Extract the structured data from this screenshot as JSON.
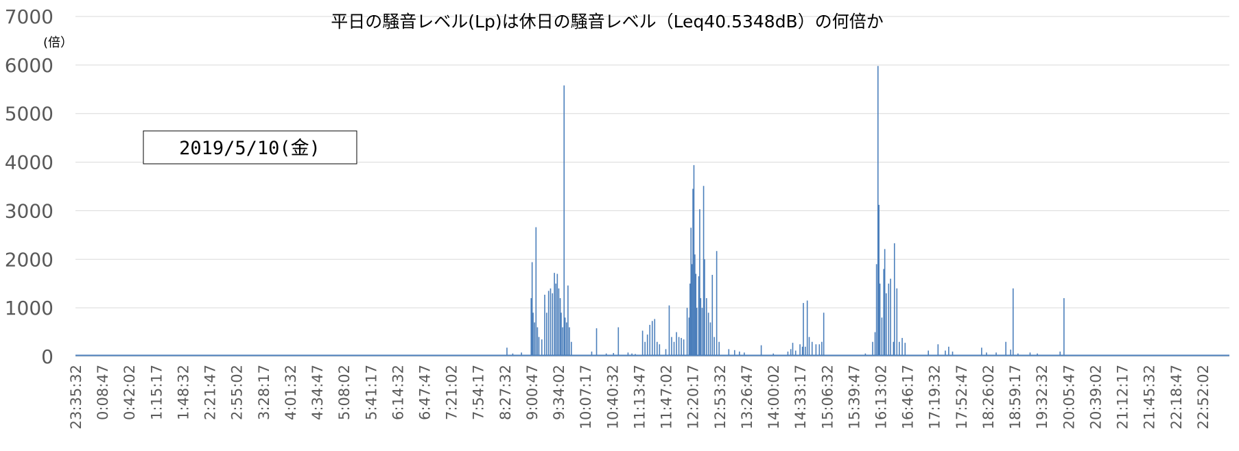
{
  "chart_data": {
    "type": "line",
    "title": "平日の騒音レベル(Lp)は休日の騒音レベル（Leq40.5348dB）の何倍か",
    "ylabel": "(倍）",
    "annotation": "2019/5/10(金)",
    "ylim": [
      0,
      7000
    ],
    "yticks": [
      0,
      1000,
      2000,
      3000,
      4000,
      5000,
      6000,
      7000
    ],
    "grid": true,
    "legend": "none",
    "series_color": "#4a7ebb",
    "xticks": [
      "23:35:32",
      "0:08:47",
      "0:42:02",
      "1:15:17",
      "1:48:32",
      "2:21:47",
      "2:55:02",
      "3:28:17",
      "4:01:32",
      "4:34:47",
      "5:08:02",
      "5:41:17",
      "6:14:32",
      "6:47:47",
      "7:21:02",
      "7:54:17",
      "8:27:32",
      "9:00:47",
      "9:34:02",
      "10:07:17",
      "10:40:32",
      "11:13:47",
      "11:47:02",
      "12:20:17",
      "12:53:32",
      "13:26:47",
      "14:00:02",
      "14:33:17",
      "15:06:32",
      "15:39:47",
      "16:13:02",
      "16:46:17",
      "17:19:32",
      "17:52:47",
      "18:26:02",
      "18:59:17",
      "19:32:32",
      "20:05:47",
      "20:39:02",
      "21:12:17",
      "21:45:32",
      "22:18:47",
      "22:52:02"
    ],
    "x_min_hours": -0.4078,
    "x_max_hours": 23.415,
    "peaks": [
      [
        8.5,
        180
      ],
      [
        8.62,
        60
      ],
      [
        8.8,
        80
      ],
      [
        9.0,
        1200
      ],
      [
        9.02,
        1940
      ],
      [
        9.04,
        900
      ],
      [
        9.07,
        700
      ],
      [
        9.1,
        2660
      ],
      [
        9.13,
        600
      ],
      [
        9.16,
        400
      ],
      [
        9.22,
        350
      ],
      [
        9.28,
        1270
      ],
      [
        9.32,
        900
      ],
      [
        9.36,
        1350
      ],
      [
        9.4,
        1400
      ],
      [
        9.44,
        1300
      ],
      [
        9.48,
        1720
      ],
      [
        9.51,
        1500
      ],
      [
        9.54,
        1700
      ],
      [
        9.57,
        1400
      ],
      [
        9.6,
        1200
      ],
      [
        9.62,
        900
      ],
      [
        9.65,
        600
      ],
      [
        9.68,
        5580
      ],
      [
        9.7,
        800
      ],
      [
        9.73,
        700
      ],
      [
        9.76,
        1460
      ],
      [
        9.79,
        600
      ],
      [
        9.83,
        300
      ],
      [
        10.25,
        100
      ],
      [
        10.35,
        580
      ],
      [
        10.55,
        60
      ],
      [
        10.7,
        70
      ],
      [
        10.8,
        600
      ],
      [
        11.0,
        80
      ],
      [
        11.08,
        60
      ],
      [
        11.15,
        50
      ],
      [
        11.3,
        530
      ],
      [
        11.35,
        300
      ],
      [
        11.4,
        450
      ],
      [
        11.45,
        650
      ],
      [
        11.5,
        730
      ],
      [
        11.55,
        770
      ],
      [
        11.6,
        300
      ],
      [
        11.65,
        250
      ],
      [
        11.78,
        150
      ],
      [
        11.85,
        1050
      ],
      [
        11.9,
        400
      ],
      [
        11.95,
        300
      ],
      [
        12.0,
        500
      ],
      [
        12.05,
        400
      ],
      [
        12.1,
        380
      ],
      [
        12.15,
        350
      ],
      [
        12.22,
        1000
      ],
      [
        12.26,
        800
      ],
      [
        12.28,
        1500
      ],
      [
        12.3,
        2650
      ],
      [
        12.32,
        1900
      ],
      [
        12.34,
        3450
      ],
      [
        12.36,
        3940
      ],
      [
        12.38,
        2100
      ],
      [
        12.4,
        1700
      ],
      [
        12.42,
        1000
      ],
      [
        12.46,
        1650
      ],
      [
        12.48,
        3030
      ],
      [
        12.5,
        1200
      ],
      [
        12.53,
        1000
      ],
      [
        12.56,
        3510
      ],
      [
        12.58,
        2000
      ],
      [
        12.62,
        1200
      ],
      [
        12.66,
        900
      ],
      [
        12.7,
        700
      ],
      [
        12.74,
        1680
      ],
      [
        12.78,
        400
      ],
      [
        12.83,
        2170
      ],
      [
        12.88,
        300
      ],
      [
        13.08,
        150
      ],
      [
        13.2,
        130
      ],
      [
        13.3,
        100
      ],
      [
        13.4,
        80
      ],
      [
        13.75,
        230
      ],
      [
        14.0,
        60
      ],
      [
        14.3,
        100
      ],
      [
        14.36,
        150
      ],
      [
        14.4,
        280
      ],
      [
        14.46,
        120
      ],
      [
        14.55,
        250
      ],
      [
        14.6,
        200
      ],
      [
        14.62,
        1100
      ],
      [
        14.66,
        200
      ],
      [
        14.7,
        1150
      ],
      [
        14.74,
        400
      ],
      [
        14.8,
        300
      ],
      [
        14.88,
        250
      ],
      [
        14.95,
        250
      ],
      [
        15.0,
        300
      ],
      [
        15.04,
        900
      ],
      [
        15.9,
        60
      ],
      [
        16.05,
        300
      ],
      [
        16.1,
        500
      ],
      [
        16.13,
        1900
      ],
      [
        16.16,
        5980
      ],
      [
        16.18,
        3120
      ],
      [
        16.2,
        1500
      ],
      [
        16.24,
        800
      ],
      [
        16.28,
        1800
      ],
      [
        16.3,
        2210
      ],
      [
        16.33,
        1300
      ],
      [
        16.38,
        1500
      ],
      [
        16.42,
        1600
      ],
      [
        16.48,
        300
      ],
      [
        16.5,
        2330
      ],
      [
        16.55,
        1400
      ],
      [
        16.6,
        300
      ],
      [
        16.66,
        380
      ],
      [
        16.72,
        280
      ],
      [
        17.2,
        120
      ],
      [
        17.4,
        250
      ],
      [
        17.55,
        120
      ],
      [
        17.62,
        200
      ],
      [
        17.7,
        100
      ],
      [
        18.3,
        180
      ],
      [
        18.4,
        80
      ],
      [
        18.6,
        80
      ],
      [
        18.8,
        300
      ],
      [
        18.9,
        140
      ],
      [
        18.95,
        1400
      ],
      [
        19.05,
        60
      ],
      [
        19.3,
        80
      ],
      [
        19.45,
        60
      ],
      [
        19.92,
        100
      ],
      [
        20.0,
        1200
      ]
    ]
  }
}
